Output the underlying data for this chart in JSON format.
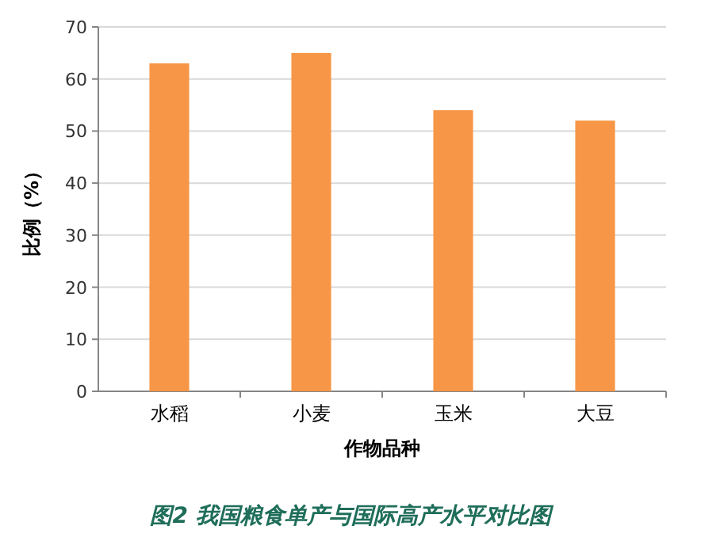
{
  "chart_data": {
    "type": "bar",
    "categories": [
      "水稻",
      "小麦",
      "玉米",
      "大豆"
    ],
    "values": [
      63,
      65,
      54,
      52
    ],
    "color": "#f79646",
    "ylim": [
      0,
      70
    ],
    "yticks": [
      0,
      10,
      20,
      30,
      40,
      50,
      60,
      70
    ],
    "grid": "y",
    "xlabel": "作物品种",
    "ylabel": "比例（%）",
    "annotations": [
      "图2 我国粮食单产与国际高产水平对比图"
    ]
  }
}
